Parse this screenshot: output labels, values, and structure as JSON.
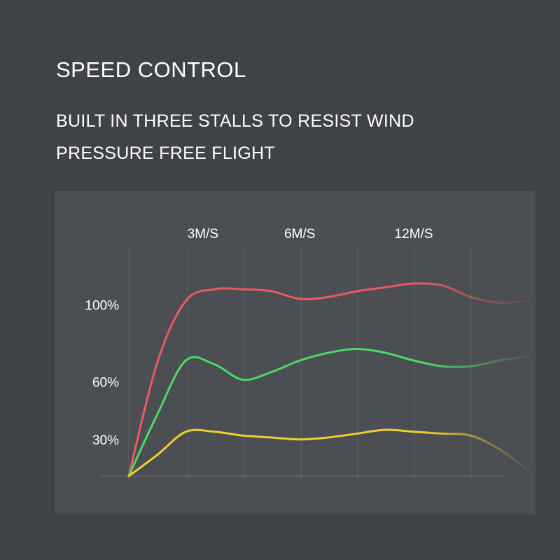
{
  "header": {
    "title": "SPEED CONTROL",
    "subtitle_line1": "BUILT IN THREE STALLS TO RESIST WIND",
    "subtitle_line2": "PRESSURE FREE FLIGHT"
  },
  "chart_data": {
    "type": "line",
    "title": "",
    "xlabel": "",
    "ylabel": "",
    "x_tick_labels": [
      {
        "label": "3M/S",
        "x": 1.3
      },
      {
        "label": "6M/S",
        "x": 3.0
      },
      {
        "label": "12M/S",
        "x": 5.0
      }
    ],
    "y_tick_labels": [
      {
        "label": "100%",
        "y": 100
      },
      {
        "label": "60%",
        "y": 60
      },
      {
        "label": "30%",
        "y": 30
      }
    ],
    "xlim": [
      0,
      7
    ],
    "ylim": [
      11,
      123
    ],
    "grid": "vertical",
    "series": [
      {
        "color": "#ea5a60",
        "x": [
          0,
          0.5,
          1,
          1.5,
          2,
          2.5,
          3,
          3.5,
          4,
          4.5,
          5,
          5.5,
          6,
          6.5,
          7
        ],
        "y": [
          11,
          70,
          102,
          108,
          108,
          107,
          103,
          104,
          107,
          109,
          111,
          110,
          104,
          101,
          102
        ]
      },
      {
        "color": "#4cd964",
        "x": [
          0,
          0.5,
          1,
          1.5,
          2,
          2.5,
          3,
          3.5,
          4,
          4.5,
          5,
          5.5,
          6,
          6.5,
          7
        ],
        "y": [
          11,
          43,
          71,
          69,
          61,
          65,
          71,
          75,
          77,
          75,
          71,
          68,
          68,
          71,
          73
        ]
      },
      {
        "color": "#f2cd2e",
        "x": [
          0,
          0.5,
          1,
          1.5,
          2,
          2.5,
          3,
          3.5,
          4,
          4.5,
          5,
          5.5,
          6,
          6.5,
          7
        ],
        "y": [
          11,
          22,
          34,
          34,
          32,
          31,
          30,
          31,
          33,
          35,
          34,
          33,
          32,
          25,
          14
        ]
      }
    ]
  }
}
